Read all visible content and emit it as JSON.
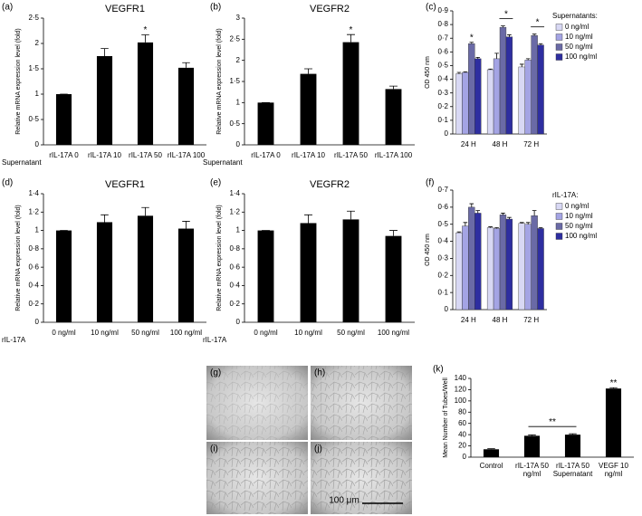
{
  "chart_data": [
    {
      "type": "bar",
      "panel": "(a)",
      "title": "VEGFR1",
      "ylabel": "Relative mRNA expression level (fold)",
      "xprefix": "Supernatant",
      "categories": [
        "rIL-17A 0",
        "rIL-17A 10",
        "rIL-17A 50",
        "rIL-17A 100"
      ],
      "values": [
        1,
        1.75,
        2.02,
        1.52
      ],
      "errors": [
        0,
        0.15,
        0.15,
        0.1
      ],
      "color": "#000000",
      "ylim": [
        0,
        2.5
      ],
      "yticks": [
        0,
        {
          "value": 0.5,
          "label": "0·5"
        },
        1,
        {
          "value": 1.5,
          "label": "1·5"
        },
        2,
        {
          "value": 2.5,
          "label": "2·5"
        }
      ],
      "annotations": [
        {
          "text": "*"
        }
      ]
    },
    {
      "type": "bar",
      "panel": "(b)",
      "title": "VEGFR2",
      "ylabel": "Relative mRNA expression level (fold)",
      "xprefix": "Supernatant",
      "categories": [
        "rIL-17A 0",
        "rIL-17A 10",
        "rIL-17A 50",
        "rIL-17A 100"
      ],
      "values": [
        1,
        1.68,
        2.43,
        1.32
      ],
      "errors": [
        0,
        0.12,
        0.18,
        0.07
      ],
      "color": "#000000",
      "ylim": [
        0,
        3
      ],
      "yticks": [
        0,
        {
          "value": 0.5,
          "label": "0·5"
        },
        1,
        {
          "value": 1.5,
          "label": "1·5"
        },
        2,
        {
          "value": 2.5,
          "label": "2·5"
        },
        3
      ],
      "annotations": [
        {
          "text": "*"
        }
      ]
    },
    {
      "type": "groupbar",
      "panel": "(c)",
      "ylabel": "OD 450 nm",
      "legend_title": "Supernatants:",
      "categories": [
        "24 H",
        "48 H",
        "72 H"
      ],
      "series": [
        {
          "name": "0 ng/ml",
          "color": "#d8d8f4",
          "values": [
            0.44,
            0.47,
            0.49
          ],
          "errors": [
            0.01,
            0.005,
            0.02
          ]
        },
        {
          "name": "10 ng/ml",
          "color": "#a4a4e4",
          "values": [
            0.45,
            0.55,
            0.54
          ],
          "errors": [
            0.005,
            0.04,
            0.01
          ]
        },
        {
          "name": "50 ng/ml",
          "color": "#6a6aa6",
          "values": [
            0.66,
            0.78,
            0.72
          ],
          "errors": [
            0.01,
            0.01,
            0.01
          ]
        },
        {
          "name": "100 ng/ml",
          "color": "#2e2ea0",
          "values": [
            0.55,
            0.71,
            0.65
          ],
          "errors": [
            0.01,
            0.015,
            0.01
          ]
        }
      ],
      "ylim": [
        0,
        0.9
      ],
      "yticks": [
        0,
        {
          "value": 0.1,
          "label": "0·1"
        },
        {
          "value": 0.2,
          "label": "0·2"
        },
        {
          "value": 0.3,
          "label": "0·3"
        },
        {
          "value": 0.4,
          "label": "0·4"
        },
        {
          "value": 0.5,
          "label": "0·5"
        },
        {
          "value": 0.6,
          "label": "0·6"
        },
        {
          "value": 0.7,
          "label": "0·7"
        },
        {
          "value": 0.8,
          "label": "0·8"
        },
        {
          "value": 0.9,
          "label": "0·9"
        }
      ],
      "annotations": [
        {
          "text": "*"
        },
        {
          "text": "*"
        },
        {
          "text": "*"
        }
      ]
    },
    {
      "type": "bar",
      "panel": "(d)",
      "title": "VEGFR1",
      "ylabel": "Relative mRNA expression level (fold)",
      "xprefix": "rIL-17A",
      "categories": [
        "0 ng/ml",
        "10 ng/ml",
        "50 ng/ml",
        "100 ng/ml"
      ],
      "values": [
        1,
        1.09,
        1.16,
        1.02
      ],
      "errors": [
        0,
        0.08,
        0.09,
        0.08
      ],
      "color": "#000000",
      "ylim": [
        0,
        1.4
      ],
      "yticks": [
        0,
        {
          "value": 0.2,
          "label": "0·2"
        },
        {
          "value": 0.4,
          "label": "0·4"
        },
        {
          "value": 0.6,
          "label": "0·6"
        },
        {
          "value": 0.8,
          "label": "0·8"
        },
        1,
        {
          "value": 1.2,
          "label": "1·2"
        },
        {
          "value": 1.4,
          "label": "1·4"
        }
      ]
    },
    {
      "type": "bar",
      "panel": "(e)",
      "title": "VEGFR2",
      "ylabel": "Relative mRNA expression level (fold)",
      "xprefix": "rIL-17A",
      "categories": [
        "0 ng/ml",
        "10 ng/ml",
        "50 ng/ml",
        "100 ng/ml"
      ],
      "values": [
        1,
        1.08,
        1.12,
        0.94
      ],
      "errors": [
        0,
        0.09,
        0.09,
        0.06
      ],
      "color": "#000000",
      "ylim": [
        0,
        1.4
      ],
      "yticks": [
        0,
        {
          "value": 0.2,
          "label": "0·2"
        },
        {
          "value": 0.4,
          "label": "0·4"
        },
        {
          "value": 0.6,
          "label": "0·6"
        },
        {
          "value": 0.8,
          "label": "0·8"
        },
        1,
        {
          "value": 1.2,
          "label": "1·2"
        },
        {
          "value": 1.4,
          "label": "1·4"
        }
      ]
    },
    {
      "type": "groupbar",
      "panel": "(f)",
      "ylabel": "OD 450 nm",
      "legend_title": "rIL-17A:",
      "categories": [
        "24 H",
        "48 H",
        "72 H"
      ],
      "series": [
        {
          "name": "0 ng/ml",
          "color": "#d8d8f4",
          "values": [
            0.45,
            0.48,
            0.505
          ],
          "errors": [
            0.005,
            0.005,
            0.005
          ]
        },
        {
          "name": "10 ng/ml",
          "color": "#a4a4e4",
          "values": [
            0.49,
            0.475,
            0.5
          ],
          "errors": [
            0.02,
            0.005,
            0.01
          ]
        },
        {
          "name": "50 ng/ml",
          "color": "#6a6aa6",
          "values": [
            0.6,
            0.555,
            0.55
          ],
          "errors": [
            0.02,
            0.01,
            0.03
          ]
        },
        {
          "name": "100 ng/ml",
          "color": "#2e2ea0",
          "values": [
            0.565,
            0.53,
            0.475
          ],
          "errors": [
            0.015,
            0.01,
            0.005
          ]
        }
      ],
      "ylim": [
        0,
        0.7
      ],
      "yticks": [
        0,
        {
          "value": 0.1,
          "label": "0·1"
        },
        {
          "value": 0.2,
          "label": "0·2"
        },
        {
          "value": 0.3,
          "label": "0·3"
        },
        {
          "value": 0.4,
          "label": "0·4"
        },
        {
          "value": 0.5,
          "label": "0·5"
        },
        {
          "value": 0.6,
          "label": "0·6"
        },
        {
          "value": 0.7,
          "label": "0·7"
        }
      ]
    },
    {
      "type": "bar",
      "panel": "(k)",
      "ylabel": "Mean Number of Tubes/Well",
      "categories": [
        [
          "Control"
        ],
        [
          "rIL-17A 50",
          "ng/ml"
        ],
        [
          "rIL-17A 50",
          "Supernatant"
        ],
        [
          "VEGF 10",
          "ng/ml"
        ]
      ],
      "values": [
        14,
        38,
        40,
        122
      ],
      "errors": [
        1,
        1.5,
        1.5,
        1.5
      ],
      "color": "#000000",
      "ylim": [
        0,
        140
      ],
      "yticks": [
        0,
        20,
        40,
        60,
        80,
        100,
        120,
        140
      ],
      "annotations": [
        {
          "text": "**"
        },
        {
          "text": "**"
        }
      ]
    }
  ],
  "images": {
    "labels": [
      "(g)",
      "(h)",
      "(i)",
      "(j)"
    ],
    "scale_bar": "100 μm"
  }
}
